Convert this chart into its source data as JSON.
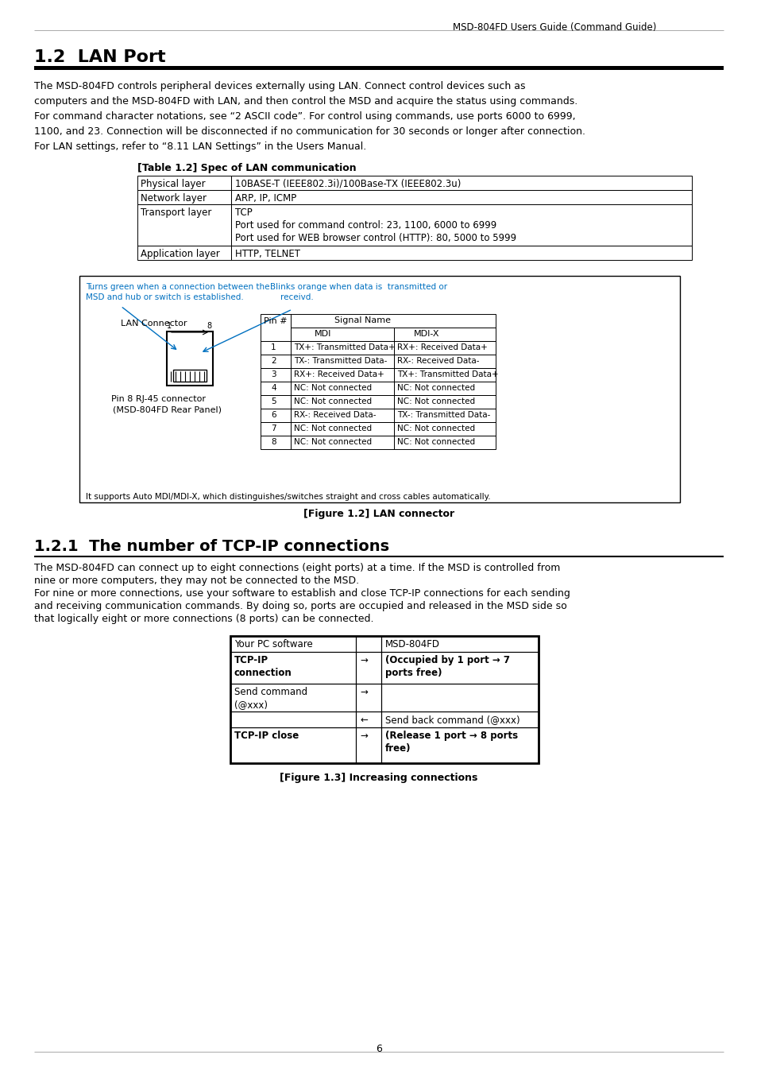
{
  "header_right": "MSD-804FD Users Guide (Command Guide)",
  "section_title": "1.2  LAN Port",
  "section_body": [
    "The MSD-804FD controls peripheral devices externally using LAN. Connect control devices such as",
    "computers and the MSD-804FD with LAN, and then control the MSD and acquire the status using commands.",
    "For command character notations, see “2 ASCII code”. For control using commands, use ports 6000 to 6999,",
    "1100, and 23. Connection will be disconnected if no communication for 30 seconds or longer after connection.",
    "For LAN settings, refer to “8.11 LAN Settings” in the Users Manual."
  ],
  "table1_title": "[Table 1.2] Spec of LAN communication",
  "table1_rows": [
    [
      "Physical layer",
      "10BASE-T (IEEE802.3i)/100Base-TX (IEEE802.3u)"
    ],
    [
      "Network layer",
      "ARP, IP, ICMP"
    ],
    [
      "Transport layer",
      "TCP\nPort used for command control: 23, 1100, 6000 to 6999\nPort used for WEB browser control (HTTP): 80, 5000 to 5999"
    ],
    [
      "Application layer",
      "HTTP, TELNET"
    ]
  ],
  "figure1_green_text1": "Turns green when a connection between the",
  "figure1_green_text2": "MSD and hub or switch is established.",
  "figure1_orange_text1": "Blinks orange when data is  transmitted or",
  "figure1_orange_text2": "receivd.",
  "figure1_lan_label": "LAN Connector",
  "figure1_pin_label1": "Pin 8 RJ-45 connector",
  "figure1_pin_label2": "(MSD-804FD Rear Panel)",
  "figure1_table_rows": [
    [
      "1",
      "TX+: Transmitted Data+",
      "RX+: Received Data+"
    ],
    [
      "2",
      "TX-: Transmitted Data-",
      "RX-: Received Data-"
    ],
    [
      "3",
      "RX+: Received Data+",
      "TX+: Transmitted Data+"
    ],
    [
      "4",
      "NC: Not connected",
      "NC: Not connected"
    ],
    [
      "5",
      "NC: Not connected",
      "NC: Not connected"
    ],
    [
      "6",
      "RX-: Received Data-",
      "TX-: Transmitted Data-"
    ],
    [
      "7",
      "NC: Not connected",
      "NC: Not connected"
    ],
    [
      "8",
      "NC: Not connected",
      "NC: Not connected"
    ]
  ],
  "figure1_footer": "It supports Auto MDI/MDI-X, which distinguishes/switches straight and cross cables automatically.",
  "figure1_caption": "[Figure 1.2] LAN connector",
  "section2_title": "1.2.1  The number of TCP-IP connections",
  "section2_body": [
    "The MSD-804FD can connect up to eight connections (eight ports) at a time. If the MSD is controlled from",
    "nine or more computers, they may not be connected to the MSD.",
    "For nine or more connections, use your software to establish and close TCP-IP connections for each sending",
    "and receiving communication commands. By doing so, ports are occupied and released in the MSD side so",
    "that logically eight or more connections (8 ports) can be connected."
  ],
  "table2_rows": [
    [
      "Your PC software",
      "",
      "MSD-804FD"
    ],
    [
      "TCP-IP\nconnection",
      "→",
      "(Occupied by 1 port → 7\nports free)"
    ],
    [
      "Send command\n(@xxx)",
      "→",
      ""
    ],
    [
      "",
      "←",
      "Send back command (@xxx)"
    ],
    [
      "TCP-IP close",
      "→",
      "(Release 1 port → 8 ports\nfree)"
    ]
  ],
  "table2_bold_cells": [
    [
      1,
      0
    ],
    [
      1,
      2
    ],
    [
      4,
      0
    ],
    [
      4,
      2
    ]
  ],
  "figure2_caption": "[Figure 1.3] Increasing connections",
  "page_number": "6",
  "bg_color": "#ffffff",
  "blue_color": "#0070C0"
}
